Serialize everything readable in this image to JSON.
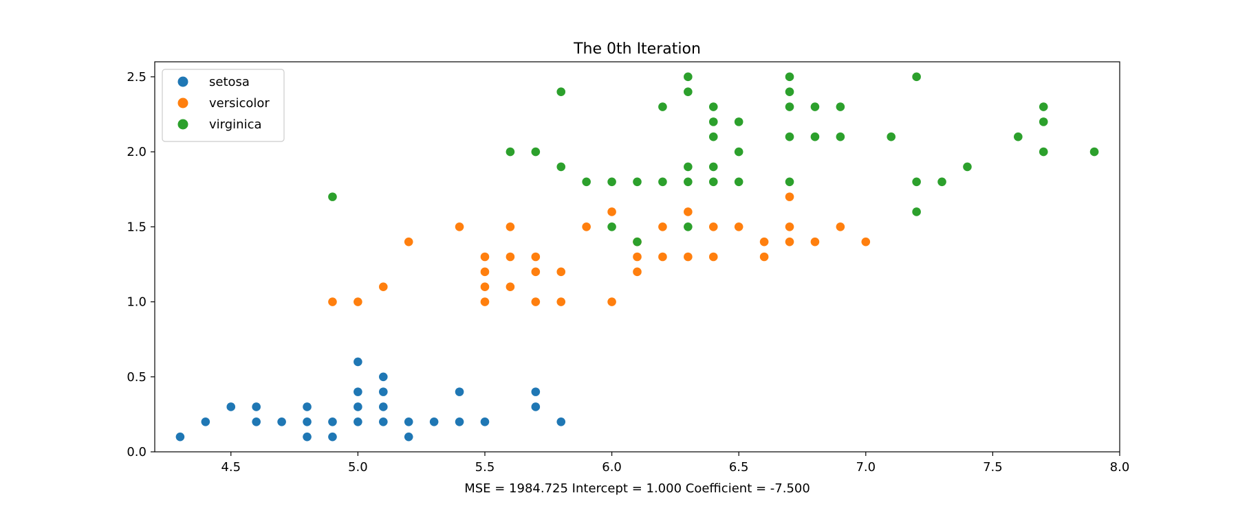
{
  "chart_data": {
    "type": "scatter",
    "title": "The 0th Iteration",
    "xlabel": "MSE = 1984.725   Intercept = 1.000   Coefficient = -7.500",
    "ylabel": "",
    "xlim": [
      4.2,
      8.0
    ],
    "ylim": [
      0.0,
      2.6
    ],
    "xticks": [
      4.5,
      5.0,
      5.5,
      6.0,
      6.5,
      7.0,
      7.5,
      8.0
    ],
    "yticks": [
      0.0,
      0.5,
      1.0,
      1.5,
      2.0,
      2.5
    ],
    "grid": false,
    "legend_position": "top-left",
    "series": [
      {
        "name": "setosa",
        "color": "#1f77b4",
        "points": [
          [
            4.3,
            0.1
          ],
          [
            4.4,
            0.2
          ],
          [
            4.5,
            0.3
          ],
          [
            4.6,
            0.2
          ],
          [
            4.6,
            0.3
          ],
          [
            4.7,
            0.2
          ],
          [
            4.8,
            0.1
          ],
          [
            4.8,
            0.2
          ],
          [
            4.8,
            0.3
          ],
          [
            4.9,
            0.1
          ],
          [
            4.9,
            0.2
          ],
          [
            5.0,
            0.2
          ],
          [
            5.0,
            0.3
          ],
          [
            5.0,
            0.4
          ],
          [
            5.0,
            0.6
          ],
          [
            5.1,
            0.2
          ],
          [
            5.1,
            0.3
          ],
          [
            5.1,
            0.4
          ],
          [
            5.1,
            0.5
          ],
          [
            5.2,
            0.1
          ],
          [
            5.2,
            0.2
          ],
          [
            5.3,
            0.2
          ],
          [
            5.4,
            0.2
          ],
          [
            5.4,
            0.4
          ],
          [
            5.5,
            0.2
          ],
          [
            5.7,
            0.3
          ],
          [
            5.7,
            0.4
          ],
          [
            5.8,
            0.2
          ]
        ]
      },
      {
        "name": "versicolor",
        "color": "#ff7f0e",
        "points": [
          [
            4.9,
            1.0
          ],
          [
            5.0,
            1.0
          ],
          [
            5.1,
            1.1
          ],
          [
            5.2,
            1.4
          ],
          [
            5.4,
            1.5
          ],
          [
            5.5,
            1.0
          ],
          [
            5.5,
            1.1
          ],
          [
            5.5,
            1.2
          ],
          [
            5.5,
            1.3
          ],
          [
            5.6,
            1.1
          ],
          [
            5.6,
            1.3
          ],
          [
            5.6,
            1.5
          ],
          [
            5.7,
            1.0
          ],
          [
            5.7,
            1.2
          ],
          [
            5.7,
            1.3
          ],
          [
            5.8,
            1.0
          ],
          [
            5.8,
            1.2
          ],
          [
            5.9,
            1.5
          ],
          [
            6.0,
            1.0
          ],
          [
            6.0,
            1.6
          ],
          [
            6.1,
            1.2
          ],
          [
            6.1,
            1.3
          ],
          [
            6.1,
            1.4
          ],
          [
            6.2,
            1.3
          ],
          [
            6.2,
            1.5
          ],
          [
            6.3,
            1.3
          ],
          [
            6.3,
            1.6
          ],
          [
            6.4,
            1.3
          ],
          [
            6.4,
            1.5
          ],
          [
            6.5,
            1.5
          ],
          [
            6.6,
            1.3
          ],
          [
            6.6,
            1.4
          ],
          [
            6.7,
            1.4
          ],
          [
            6.7,
            1.5
          ],
          [
            6.7,
            1.7
          ],
          [
            6.8,
            1.4
          ],
          [
            6.9,
            1.5
          ],
          [
            7.0,
            1.4
          ]
        ]
      },
      {
        "name": "virginica",
        "color": "#2ca02c",
        "points": [
          [
            4.9,
            1.7
          ],
          [
            5.6,
            2.0
          ],
          [
            5.7,
            2.0
          ],
          [
            5.8,
            1.9
          ],
          [
            5.8,
            2.4
          ],
          [
            5.9,
            1.8
          ],
          [
            6.0,
            1.5
          ],
          [
            6.0,
            1.8
          ],
          [
            6.1,
            1.4
          ],
          [
            6.1,
            1.8
          ],
          [
            6.2,
            1.8
          ],
          [
            6.2,
            2.3
          ],
          [
            6.3,
            1.5
          ],
          [
            6.3,
            1.8
          ],
          [
            6.3,
            1.9
          ],
          [
            6.3,
            2.4
          ],
          [
            6.3,
            2.5
          ],
          [
            6.4,
            1.8
          ],
          [
            6.4,
            1.9
          ],
          [
            6.4,
            2.1
          ],
          [
            6.4,
            2.2
          ],
          [
            6.4,
            2.3
          ],
          [
            6.5,
            1.8
          ],
          [
            6.5,
            2.0
          ],
          [
            6.5,
            2.2
          ],
          [
            6.7,
            1.8
          ],
          [
            6.7,
            2.1
          ],
          [
            6.7,
            2.3
          ],
          [
            6.7,
            2.4
          ],
          [
            6.7,
            2.5
          ],
          [
            6.8,
            2.1
          ],
          [
            6.8,
            2.3
          ],
          [
            6.9,
            2.1
          ],
          [
            6.9,
            2.3
          ],
          [
            7.1,
            2.1
          ],
          [
            7.2,
            1.6
          ],
          [
            7.2,
            1.8
          ],
          [
            7.2,
            2.5
          ],
          [
            7.3,
            1.8
          ],
          [
            7.4,
            1.9
          ],
          [
            7.6,
            2.1
          ],
          [
            7.7,
            2.0
          ],
          [
            7.7,
            2.2
          ],
          [
            7.7,
            2.3
          ],
          [
            7.9,
            2.0
          ]
        ]
      }
    ]
  }
}
